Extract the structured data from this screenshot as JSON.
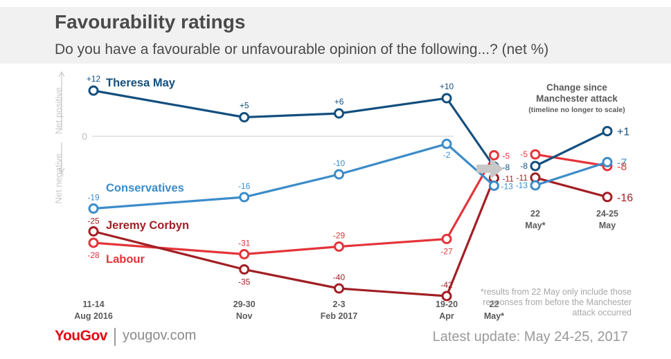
{
  "title": "Favourability ratings",
  "subtitle": "Do you have a favourable or unfavourable opinion of the following...? (net %)",
  "footer": {
    "logo": "YouGov",
    "site": "yougov.com",
    "update": "Latest update: May 24-25, 2017",
    "footnote": "*results from 22 May only include those responses from before the Manchester attack occurred"
  },
  "colors": {
    "theresa_may": "#134f7e",
    "conservatives": "#3c8cc9",
    "jeremy_corbyn": "#a11f24",
    "labour": "#e4343a",
    "axis_text": "#5a5a5a",
    "zero_line": "#dddddd",
    "side_text": "#c8c8c8",
    "arrow": "#c8c8c8"
  },
  "chart_data": [
    {
      "type": "line",
      "title": "Favourability ratings",
      "ylabel_positive": "Net positive",
      "ylabel_negative": "Net negative",
      "zero_label": "0",
      "x": [
        {
          "line1": "11-14",
          "line2": "Aug 2016"
        },
        {
          "line1": "29-30",
          "line2": "Nov"
        },
        {
          "line1": "2-3",
          "line2": "Feb 2017"
        },
        {
          "line1": "19-20",
          "line2": "Apr"
        },
        {
          "line1": "22",
          "line2": "May*"
        }
      ],
      "series": [
        {
          "key": "theresa_may",
          "name": "Theresa May",
          "values": [
            12,
            5,
            6,
            10,
            -8
          ],
          "labels": [
            "+12",
            "+5",
            "+6",
            "+10",
            "-8"
          ]
        },
        {
          "key": "conservatives",
          "name": "Conservatives",
          "values": [
            -19,
            -16,
            -10,
            -2,
            -13
          ],
          "labels": [
            "-19",
            "-16",
            "-10",
            "-2",
            "-13"
          ]
        },
        {
          "key": "jeremy_corbyn",
          "name": "Jeremy Corbyn",
          "values": [
            -25,
            -35,
            -40,
            -42,
            -11
          ],
          "labels": [
            "-25",
            "-35",
            "-40",
            "-42",
            "-11"
          ]
        },
        {
          "key": "labour",
          "name": "Labour",
          "values": [
            -28,
            -31,
            -29,
            -27,
            -5
          ],
          "labels": [
            "-28",
            "-31",
            "-29",
            "-27",
            "-5"
          ]
        }
      ]
    },
    {
      "type": "line",
      "title_line1": "Change since",
      "title_line2": "Manchester attack",
      "note": "(timeline no longer to scale)",
      "x": [
        {
          "line1": "22",
          "line2": "May*"
        },
        {
          "line1": "24-25",
          "line2": "May"
        }
      ],
      "series": [
        {
          "key": "theresa_may",
          "name": "Theresa May",
          "values": [
            -8,
            1
          ],
          "labels": [
            "-8",
            "+1"
          ]
        },
        {
          "key": "conservatives",
          "name": "Conservatives",
          "values": [
            -13,
            -7
          ],
          "labels": [
            "-13",
            "-7"
          ]
        },
        {
          "key": "jeremy_corbyn",
          "name": "Jeremy Corbyn",
          "values": [
            -11,
            -16
          ],
          "labels": [
            "-11",
            "-16"
          ]
        },
        {
          "key": "labour",
          "name": "Labour",
          "values": [
            -5,
            -8
          ],
          "labels": [
            "-5",
            "-8"
          ]
        }
      ]
    }
  ]
}
